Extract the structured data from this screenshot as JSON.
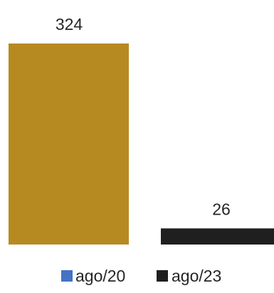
{
  "chart_data": {
    "type": "bar",
    "categories": [
      "ago/20",
      "ago/23"
    ],
    "values": [
      324,
      26
    ],
    "series": [
      {
        "name": "ago/20",
        "value": 324,
        "bar_color": "#b78a21",
        "legend_color": "#4472c4"
      },
      {
        "name": "ago/23",
        "value": 26,
        "bar_color": "#1f1f1f",
        "legend_color": "#1f1f1f"
      }
    ],
    "title": "",
    "xlabel": "",
    "ylabel": "",
    "ylim": [
      0,
      324
    ],
    "grid": false,
    "legend_position": "bottom"
  }
}
